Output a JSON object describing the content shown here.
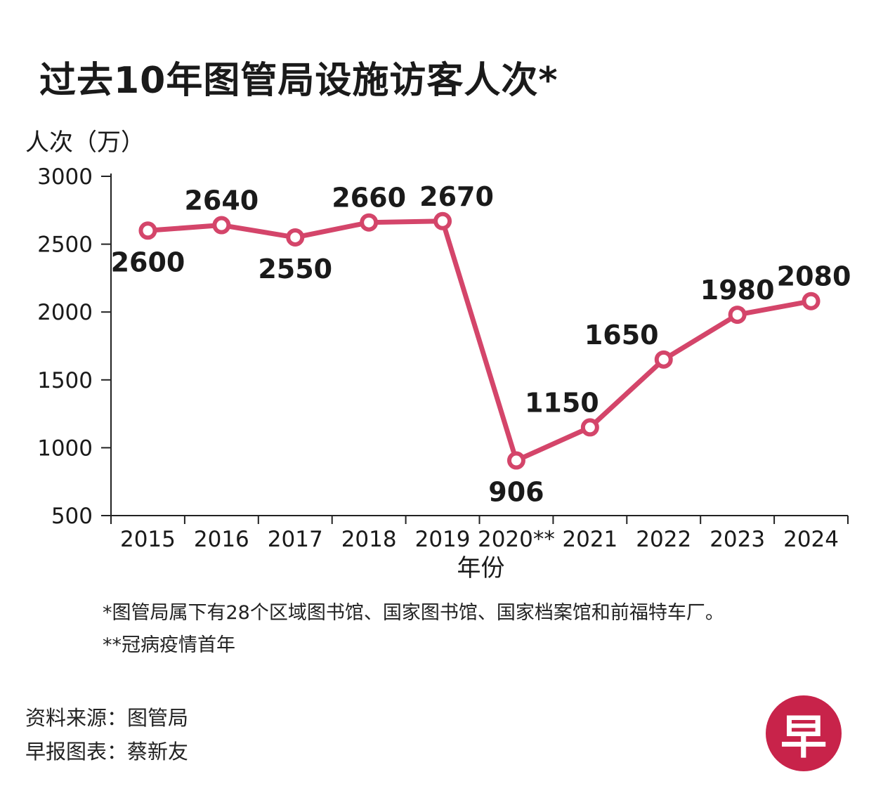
{
  "chart_data": {
    "type": "line",
    "title": "过去10年图管局设施访客人次*",
    "ylabel": "人次（万）",
    "xlabel": "年份",
    "categories": [
      "2015",
      "2016",
      "2017",
      "2018",
      "2019",
      "2020**",
      "2021",
      "2022",
      "2023",
      "2024"
    ],
    "values": [
      2600,
      2640,
      2550,
      2660,
      2670,
      906,
      1150,
      1650,
      1980,
      2080
    ],
    "data_labels": [
      "2600",
      "2640",
      "2550",
      "2660",
      "2670",
      "906",
      "1150",
      "1650",
      "1980",
      "2080"
    ],
    "yticks": [
      "3000",
      "2500",
      "2000",
      "1500",
      "1000",
      "500"
    ],
    "ylim": [
      500,
      3000
    ],
    "grid": false,
    "legend": "none",
    "line_color": "#d4456a"
  },
  "notes": {
    "note1": "*图管局属下有28个区域图书馆、国家图书馆、国家档案馆和前福特车厂。",
    "note2": "**冠病疫情首年"
  },
  "credits": {
    "source": "资料来源：图管局",
    "graphic": "早报图表：蔡新友"
  },
  "logo": {
    "text": "早",
    "color": "#c8234a"
  }
}
